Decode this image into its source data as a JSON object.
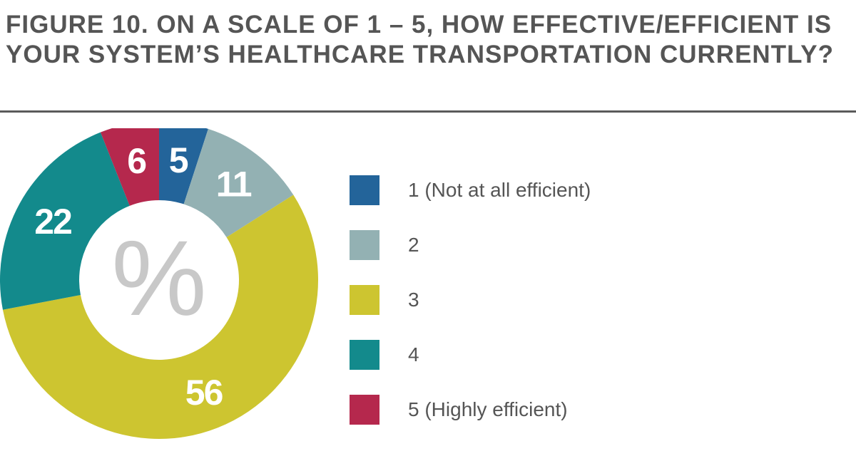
{
  "figure": {
    "title": "FIGURE 10. ON A SCALE OF 1 – 5, HOW EFFECTIVE/EFFICIENT IS YOUR SYSTEM’S HEALTHCARE TRANSPORTATION CURRENTLY?"
  },
  "chart_data": {
    "type": "pie",
    "variant": "donut",
    "title": "FIGURE 10. ON A SCALE OF 1 – 5, HOW EFFECTIVE/EFFICIENT IS YOUR SYSTEM’S HEALTHCARE TRANSPORTATION CURRENTLY?",
    "unit_symbol": "%",
    "categories": [
      "1 (Not at all efficient)",
      "2",
      "3",
      "4",
      "5 (Highly efficient)"
    ],
    "values": [
      5,
      11,
      56,
      22,
      6
    ],
    "value_labels": [
      "5",
      "11",
      "56",
      "22",
      "6"
    ],
    "colors": [
      "#23649a",
      "#93b1b3",
      "#cdc530",
      "#138a8c",
      "#b5284d"
    ],
    "legend_position": "right",
    "start": "top",
    "direction": "clockwise"
  }
}
